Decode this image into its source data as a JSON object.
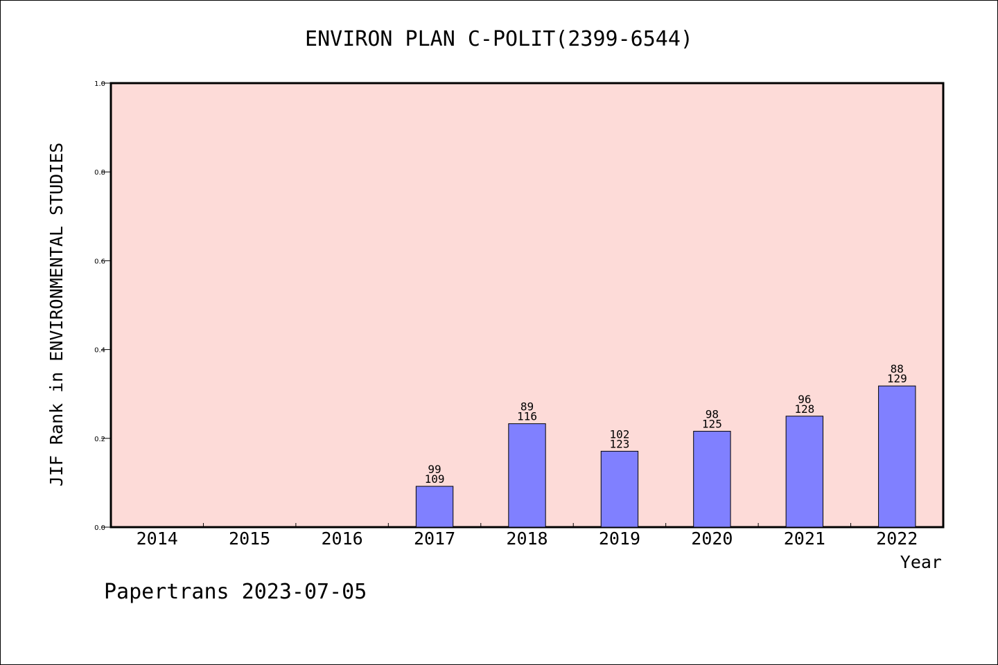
{
  "chart_data": {
    "type": "bar",
    "title": "ENVIRON PLAN C-POLIT(2399-6544)",
    "xlabel": "Year",
    "ylabel": "JIF Rank in ENVIRONMENTAL STUDIES",
    "footer": "Papertrans 2023-07-05",
    "categories": [
      "2014",
      "2015",
      "2016",
      "2017",
      "2018",
      "2019",
      "2020",
      "2021",
      "2022"
    ],
    "values": [
      null,
      null,
      null,
      0.092,
      0.233,
      0.171,
      0.216,
      0.25,
      0.318
    ],
    "bar_labels": [
      null,
      null,
      null,
      {
        "rank": "99",
        "total": "109"
      },
      {
        "rank": "89",
        "total": "116"
      },
      {
        "rank": "102",
        "total": "123"
      },
      {
        "rank": "98",
        "total": "125"
      },
      {
        "rank": "96",
        "total": "128"
      },
      {
        "rank": "88",
        "total": "129"
      }
    ],
    "ylim": [
      0,
      1.0
    ],
    "yticks": [
      "0.0",
      "0.2",
      "0.4",
      "0.6",
      "0.8",
      "1.0"
    ],
    "grid": false,
    "colors": {
      "plot_background": "#fddbd8",
      "bar_fill": "#8080ff",
      "bar_edge": "#000000"
    }
  }
}
